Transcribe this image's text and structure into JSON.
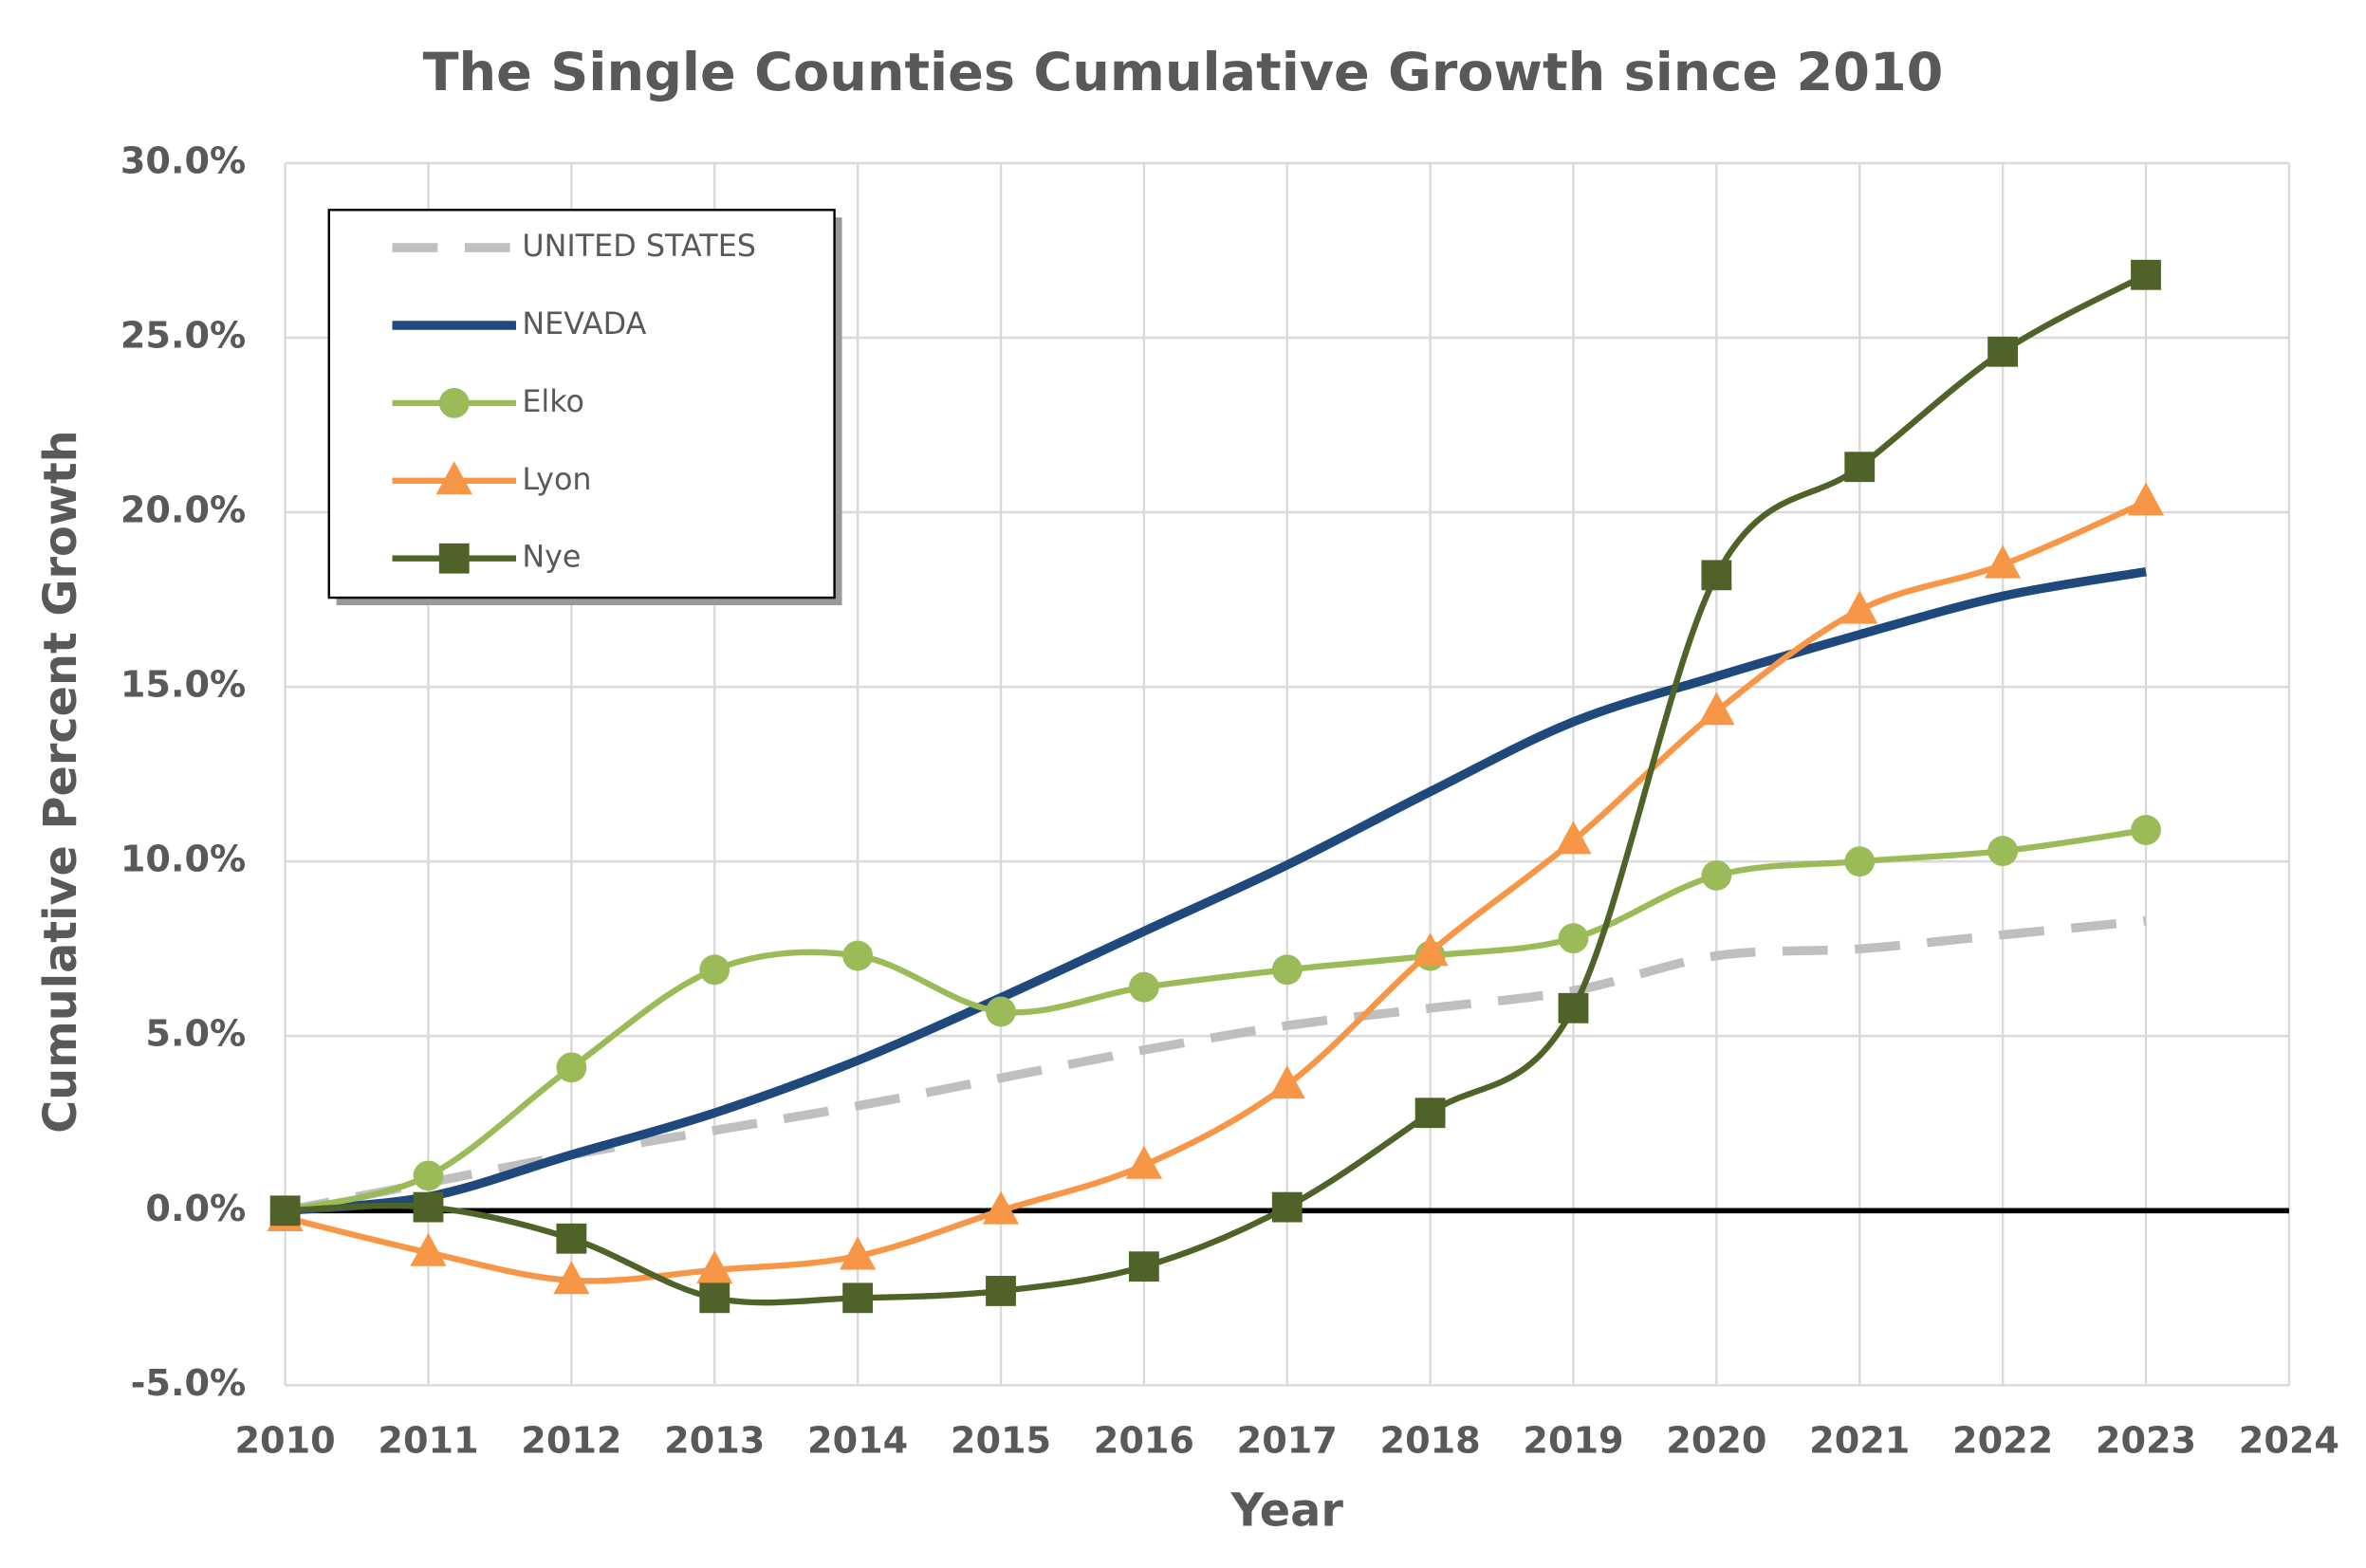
{
  "chart_data": {
    "type": "line",
    "title": "The Single Counties Cumulative Growth since 2010",
    "x_label": "Year",
    "y_label": "Cumulative Percent Growth",
    "x": [
      2010,
      2011,
      2012,
      2013,
      2014,
      2015,
      2016,
      2017,
      2018,
      2019,
      2020,
      2021,
      2022,
      2023
    ],
    "xlim": [
      2010,
      2024
    ],
    "xticks": [
      2010,
      2011,
      2012,
      2013,
      2014,
      2015,
      2016,
      2017,
      2018,
      2019,
      2020,
      2021,
      2022,
      2023,
      2024
    ],
    "ylim": [
      -5,
      30
    ],
    "yticks": [
      {
        "value": -5,
        "label": "-5.0%"
      },
      {
        "value": 0,
        "label": "0.0%"
      },
      {
        "value": 5,
        "label": "5.0%"
      },
      {
        "value": 10,
        "label": "10.0%"
      },
      {
        "value": 15,
        "label": "15.0%"
      },
      {
        "value": 20,
        "label": "20.0%"
      },
      {
        "value": 25,
        "label": "25.0%"
      },
      {
        "value": 30,
        "label": "30.0%"
      }
    ],
    "grid": true,
    "legend": "upper left",
    "series": [
      {
        "name": "UNITED STATES",
        "color": "#bfbfbf",
        "dash": true,
        "width": 6,
        "marker": "none",
        "values": [
          0,
          0.8,
          1.6,
          2.3,
          3.0,
          3.8,
          4.6,
          5.3,
          5.8,
          6.3,
          7.3,
          7.5,
          7.9,
          8.3
        ]
      },
      {
        "name": "NEVADA",
        "color": "#1f497d",
        "width": 6,
        "marker": "none",
        "values": [
          0,
          0.4,
          1.6,
          2.8,
          4.3,
          6.1,
          8.0,
          9.9,
          12.0,
          14.0,
          15.3,
          16.5,
          17.6,
          18.3
        ]
      },
      {
        "name": "Elko",
        "color": "#9bbb59",
        "width": 4,
        "marker": "circle",
        "values": [
          0,
          1.0,
          4.1,
          6.9,
          7.3,
          5.7,
          6.4,
          6.9,
          7.3,
          7.8,
          9.6,
          10.0,
          10.3,
          10.9
        ]
      },
      {
        "name": "Lyon",
        "color": "#f79646",
        "width": 4,
        "marker": "triangle",
        "values": [
          -0.2,
          -1.2,
          -2.0,
          -1.7,
          -1.3,
          0.0,
          1.3,
          3.6,
          7.4,
          10.6,
          14.3,
          17.2,
          18.5,
          20.3
        ]
      },
      {
        "name": "Nye",
        "color": "#4f6228",
        "width": 4,
        "marker": "square",
        "values": [
          0,
          0.1,
          -0.8,
          -2.5,
          -2.5,
          -2.3,
          -1.6,
          0.1,
          2.8,
          5.8,
          18.2,
          21.3,
          24.6,
          26.8
        ]
      }
    ]
  }
}
